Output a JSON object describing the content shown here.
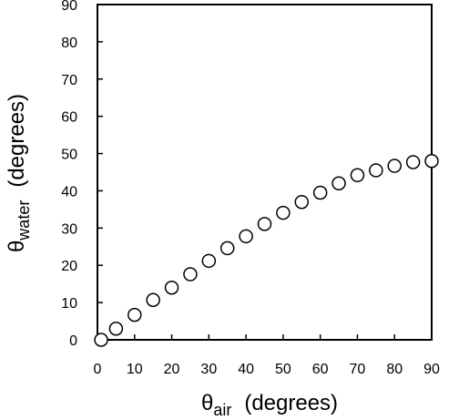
{
  "chart_data": {
    "type": "scatter",
    "title": "",
    "xlabel": {
      "symbol": "θ",
      "subscript": "air",
      "unit": "(degrees)"
    },
    "ylabel": {
      "symbol": "θ",
      "subscript": "water",
      "unit": "(degrees)"
    },
    "xlim": [
      0,
      90
    ],
    "ylim": [
      0,
      90
    ],
    "x_ticks": [
      "0",
      "10",
      "20",
      "30",
      "40",
      "50",
      "60",
      "70",
      "80",
      "90"
    ],
    "y_ticks": [
      "0",
      "10",
      "20",
      "30",
      "40",
      "50",
      "60",
      "70",
      "80",
      "90"
    ],
    "grid": false,
    "legend": "none",
    "marker": "open-circle",
    "marker_color": "#000000",
    "series": [
      {
        "x": [
          1,
          5,
          10,
          15,
          20,
          25,
          30,
          35,
          40,
          45,
          50,
          55,
          60,
          65,
          70,
          75,
          80,
          85,
          90
        ],
        "y": [
          0,
          3,
          6.7,
          10.7,
          14,
          17.6,
          21.2,
          24.6,
          27.8,
          31.1,
          34.1,
          37,
          39.5,
          42,
          44.2,
          45.5,
          46.7,
          47.7,
          48
        ]
      }
    ]
  }
}
